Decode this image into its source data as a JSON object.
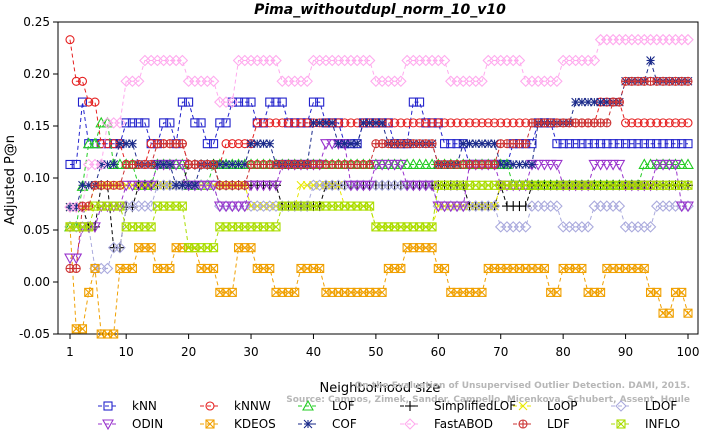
{
  "chart_data": {
    "type": "line",
    "title": "Pima_withoutdupl_norm_10_v10",
    "xlabel": "Neighborhood size",
    "ylabel": "Adjusted P@n",
    "xlim": [
      1,
      100
    ],
    "ylim": [
      -0.05,
      0.25
    ],
    "xticks": [
      1,
      10,
      20,
      30,
      40,
      50,
      60,
      70,
      80,
      90,
      100
    ],
    "yticks": [
      -0.05,
      0.0,
      0.05,
      0.1,
      0.15,
      0.2,
      0.25
    ],
    "grid": false,
    "legend_position": "bottom",
    "credit": [
      "Source: Campos, Zimek, Sander, Campello, Micenkova, Schubert, Assent, Houle",
      "On the Evaluation of Unsupervised Outlier Detection. DAMI, 2015."
    ],
    "series": [
      {
        "name": "kNN",
        "color": "#2222cc",
        "marker": "square",
        "segments": [
          [
            1,
            0.113
          ],
          [
            3,
            0.173
          ],
          [
            4,
            0.133
          ],
          [
            8,
            0.133
          ],
          [
            10,
            0.153
          ],
          [
            14,
            0.133
          ],
          [
            16,
            0.153
          ],
          [
            18,
            0.133
          ],
          [
            19,
            0.173
          ],
          [
            21,
            0.153
          ],
          [
            23,
            0.133
          ],
          [
            25,
            0.153
          ],
          [
            27,
            0.173
          ],
          [
            31,
            0.153
          ],
          [
            33,
            0.173
          ],
          [
            36,
            0.153
          ],
          [
            40,
            0.173
          ],
          [
            42,
            0.153
          ],
          [
            45,
            0.133
          ],
          [
            48,
            0.153
          ],
          [
            53,
            0.133
          ],
          [
            56,
            0.173
          ],
          [
            58,
            0.153
          ],
          [
            61,
            0.133
          ],
          [
            65,
            0.113
          ],
          [
            72,
            0.133
          ],
          [
            76,
            0.153
          ],
          [
            79,
            0.133
          ],
          [
            100,
            0.133
          ]
        ]
      },
      {
        "name": "kNNW",
        "color": "#e52020",
        "marker": "circle",
        "segments": [
          [
            1,
            0.233
          ],
          [
            2,
            0.193
          ],
          [
            4,
            0.173
          ],
          [
            6,
            0.133
          ],
          [
            10,
            0.113
          ],
          [
            14,
            0.133
          ],
          [
            20,
            0.113
          ],
          [
            26,
            0.133
          ],
          [
            31,
            0.153
          ],
          [
            85,
            0.153
          ],
          [
            86,
            0.173
          ],
          [
            90,
            0.153
          ],
          [
            100,
            0.153
          ]
        ]
      },
      {
        "name": "LOF",
        "color": "#22cc22",
        "marker": "triangle-up",
        "segments": [
          [
            1,
            0.053
          ],
          [
            3,
            0.092
          ],
          [
            4,
            0.133
          ],
          [
            6,
            0.153
          ],
          [
            8,
            0.113
          ],
          [
            12,
            0.093
          ],
          [
            15,
            0.113
          ],
          [
            20,
            0.093
          ],
          [
            24,
            0.113
          ],
          [
            34,
            0.113
          ],
          [
            70,
            0.113
          ],
          [
            72,
            0.093
          ],
          [
            90,
            0.093
          ],
          [
            93,
            0.113
          ],
          [
            100,
            0.113
          ]
        ]
      },
      {
        "name": "SimplifiedLOF",
        "color": "#000000",
        "marker": "plus",
        "segments": [
          [
            1,
            0.072
          ],
          [
            4,
            0.053
          ],
          [
            6,
            0.093
          ],
          [
            8,
            0.033
          ],
          [
            10,
            0.072
          ],
          [
            12,
            0.093
          ],
          [
            20,
            0.113
          ],
          [
            25,
            0.093
          ],
          [
            35,
            0.073
          ],
          [
            42,
            0.093
          ],
          [
            55,
            0.093
          ],
          [
            63,
            0.093
          ],
          [
            65,
            0.073
          ],
          [
            70,
            0.093
          ],
          [
            71,
            0.073
          ],
          [
            75,
            0.093
          ],
          [
            100,
            0.093
          ]
        ]
      },
      {
        "name": "LoOP",
        "color": "#e8e800",
        "marker": "x",
        "segments": [
          [
            1,
            0.072
          ],
          [
            5,
            0.093
          ],
          [
            10,
            0.093
          ],
          [
            20,
            0.093
          ],
          [
            30,
            0.073
          ],
          [
            38,
            0.093
          ],
          [
            45,
            0.073
          ],
          [
            50,
            0.053
          ],
          [
            60,
            0.073
          ],
          [
            70,
            0.093
          ],
          [
            80,
            0.093
          ],
          [
            90,
            0.093
          ],
          [
            100,
            0.093
          ]
        ]
      },
      {
        "name": "LDOF",
        "color": "#aaaadd",
        "marker": "diamond",
        "segments": [
          [
            1,
            0.053
          ],
          [
            5,
            0.013
          ],
          [
            8,
            0.033
          ],
          [
            10,
            0.073
          ],
          [
            15,
            0.093
          ],
          [
            20,
            0.093
          ],
          [
            25,
            0.073
          ],
          [
            30,
            0.073
          ],
          [
            40,
            0.093
          ],
          [
            50,
            0.093
          ],
          [
            60,
            0.073
          ],
          [
            70,
            0.053
          ],
          [
            75,
            0.073
          ],
          [
            80,
            0.053
          ],
          [
            85,
            0.073
          ],
          [
            90,
            0.053
          ],
          [
            95,
            0.073
          ],
          [
            100,
            0.073
          ]
        ]
      },
      {
        "name": "ODIN",
        "color": "#9933cc",
        "marker": "triangle-down",
        "segments": [
          [
            1,
            0.023
          ],
          [
            3,
            0.053
          ],
          [
            6,
            0.073
          ],
          [
            10,
            0.093
          ],
          [
            15,
            0.113
          ],
          [
            20,
            0.093
          ],
          [
            25,
            0.073
          ],
          [
            30,
            0.093
          ],
          [
            35,
            0.113
          ],
          [
            42,
            0.133
          ],
          [
            46,
            0.093
          ],
          [
            50,
            0.113
          ],
          [
            55,
            0.093
          ],
          [
            60,
            0.073
          ],
          [
            65,
            0.113
          ],
          [
            70,
            0.093
          ],
          [
            75,
            0.113
          ],
          [
            80,
            0.093
          ],
          [
            85,
            0.113
          ],
          [
            90,
            0.093
          ],
          [
            95,
            0.113
          ],
          [
            99,
            0.073
          ],
          [
            100,
            0.073
          ]
        ]
      },
      {
        "name": "KDEOS",
        "color": "#f0a000",
        "marker": "square-x",
        "segments": [
          [
            1,
            0.053
          ],
          [
            2,
            -0.045
          ],
          [
            4,
            -0.01
          ],
          [
            5,
            0.013
          ],
          [
            6,
            -0.05
          ],
          [
            9,
            0.013
          ],
          [
            12,
            0.033
          ],
          [
            15,
            0.013
          ],
          [
            18,
            0.033
          ],
          [
            22,
            0.013
          ],
          [
            25,
            -0.01
          ],
          [
            28,
            0.033
          ],
          [
            31,
            0.013
          ],
          [
            34,
            -0.01
          ],
          [
            38,
            0.013
          ],
          [
            42,
            -0.01
          ],
          [
            52,
            0.013
          ],
          [
            55,
            0.033
          ],
          [
            60,
            0.013
          ],
          [
            62,
            -0.01
          ],
          [
            68,
            0.013
          ],
          [
            78,
            -0.01
          ],
          [
            80,
            0.013
          ],
          [
            84,
            -0.01
          ],
          [
            87,
            0.013
          ],
          [
            94,
            -0.01
          ],
          [
            96,
            -0.03
          ],
          [
            98,
            -0.01
          ],
          [
            100,
            -0.03
          ]
        ]
      },
      {
        "name": "COF",
        "color": "#1a2a8a",
        "marker": "asterisk",
        "segments": [
          [
            1,
            0.072
          ],
          [
            3,
            0.093
          ],
          [
            6,
            0.113
          ],
          [
            9,
            0.133
          ],
          [
            12,
            0.113
          ],
          [
            18,
            0.093
          ],
          [
            22,
            0.113
          ],
          [
            30,
            0.133
          ],
          [
            34,
            0.113
          ],
          [
            40,
            0.153
          ],
          [
            44,
            0.133
          ],
          [
            48,
            0.153
          ],
          [
            52,
            0.133
          ],
          [
            60,
            0.113
          ],
          [
            64,
            0.133
          ],
          [
            70,
            0.113
          ],
          [
            76,
            0.153
          ],
          [
            82,
            0.173
          ],
          [
            90,
            0.193
          ],
          [
            94,
            0.213
          ],
          [
            95,
            0.193
          ],
          [
            100,
            0.193
          ]
        ]
      },
      {
        "name": "FastABOD",
        "color": "#ffaaee",
        "marker": "diamond",
        "segments": [
          [
            1,
            0.072
          ],
          [
            4,
            0.113
          ],
          [
            7,
            0.153
          ],
          [
            10,
            0.193
          ],
          [
            13,
            0.213
          ],
          [
            20,
            0.193
          ],
          [
            25,
            0.173
          ],
          [
            28,
            0.213
          ],
          [
            35,
            0.193
          ],
          [
            40,
            0.213
          ],
          [
            50,
            0.193
          ],
          [
            55,
            0.213
          ],
          [
            62,
            0.193
          ],
          [
            68,
            0.213
          ],
          [
            74,
            0.193
          ],
          [
            80,
            0.213
          ],
          [
            86,
            0.233
          ],
          [
            100,
            0.233
          ]
        ]
      },
      {
        "name": "LDF",
        "color": "#cc3333",
        "marker": "circle-plus",
        "segments": [
          [
            1,
            0.013
          ],
          [
            3,
            0.073
          ],
          [
            5,
            0.093
          ],
          [
            10,
            0.113
          ],
          [
            15,
            0.133
          ],
          [
            20,
            0.113
          ],
          [
            25,
            0.093
          ],
          [
            30,
            0.113
          ],
          [
            40,
            0.113
          ],
          [
            50,
            0.133
          ],
          [
            60,
            0.113
          ],
          [
            70,
            0.133
          ],
          [
            75,
            0.153
          ],
          [
            85,
            0.153
          ],
          [
            88,
            0.173
          ],
          [
            90,
            0.193
          ],
          [
            100,
            0.193
          ]
        ]
      },
      {
        "name": "INFLO",
        "color": "#aadd00",
        "marker": "square-x",
        "segments": [
          [
            1,
            0.053
          ],
          [
            5,
            0.073
          ],
          [
            10,
            0.053
          ],
          [
            15,
            0.073
          ],
          [
            20,
            0.033
          ],
          [
            25,
            0.053
          ],
          [
            30,
            0.053
          ],
          [
            35,
            0.073
          ],
          [
            40,
            0.073
          ],
          [
            45,
            0.073
          ],
          [
            50,
            0.053
          ],
          [
            55,
            0.053
          ],
          [
            60,
            0.093
          ],
          [
            70,
            0.093
          ],
          [
            80,
            0.093
          ],
          [
            90,
            0.093
          ],
          [
            100,
            0.093
          ]
        ]
      }
    ]
  }
}
